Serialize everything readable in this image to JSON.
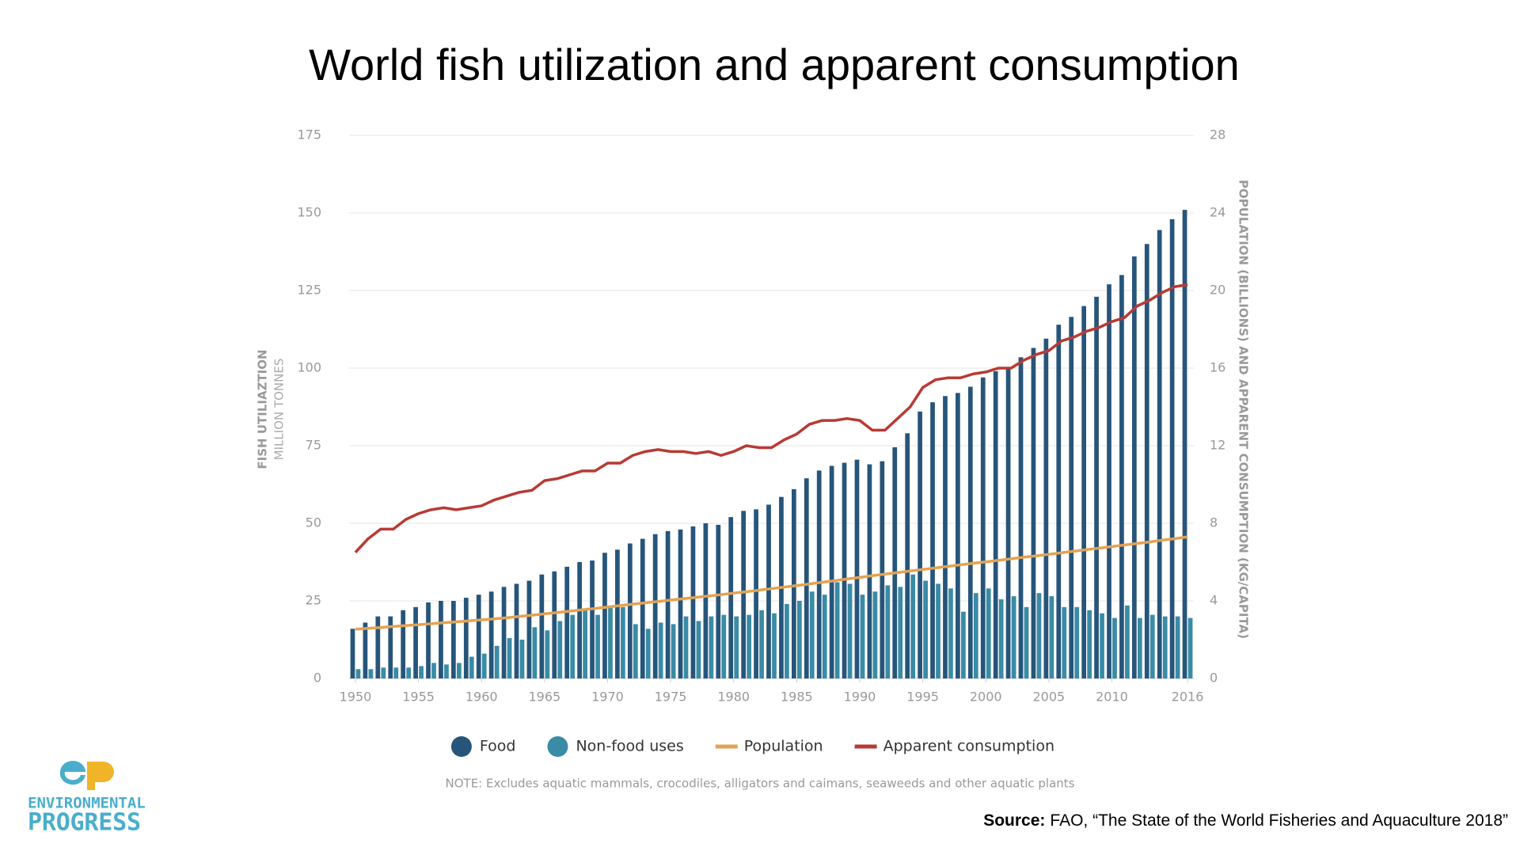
{
  "chart_data": {
    "type": "bar",
    "title": "World fish utilization and apparent consumption",
    "y_label": "FISH UTILIAZTION",
    "y_sublabel": "MILLION TONNES",
    "y2_label": "POPULATION (BILLIONS) AND APPARENT CONSUMPTION (KG/CAPITA)",
    "note": "NOTE: Excludes aquatic mammals, crocodiles, alligators and caimans, seaweeds and other aquatic plants",
    "x": [
      1950,
      1951,
      1952,
      1953,
      1954,
      1955,
      1956,
      1957,
      1958,
      1959,
      1960,
      1961,
      1962,
      1963,
      1964,
      1965,
      1966,
      1967,
      1968,
      1969,
      1970,
      1971,
      1972,
      1973,
      1974,
      1975,
      1976,
      1977,
      1978,
      1979,
      1980,
      1981,
      1982,
      1983,
      1984,
      1985,
      1986,
      1987,
      1988,
      1989,
      1990,
      1991,
      1992,
      1993,
      1994,
      1995,
      1996,
      1997,
      1998,
      1999,
      2000,
      2001,
      2002,
      2003,
      2004,
      2005,
      2006,
      2007,
      2008,
      2009,
      2010,
      2011,
      2012,
      2013,
      2014,
      2015,
      2016
    ],
    "xlim": [
      1949.5,
      2016.5
    ],
    "xticks": [
      1950,
      1955,
      1960,
      1965,
      1970,
      1975,
      1980,
      1985,
      1990,
      1995,
      2000,
      2005,
      2010,
      2016
    ],
    "ylim": [
      0,
      175
    ],
    "yticks": [
      0,
      25,
      50,
      75,
      100,
      125,
      150,
      175
    ],
    "y2lim": [
      0,
      28
    ],
    "y2ticks": [
      0,
      4,
      8,
      12,
      16,
      20,
      24,
      28
    ],
    "grid": true,
    "legend": "bottom",
    "series": [
      {
        "name": "Food",
        "type": "bar",
        "color": "#27557a",
        "values": [
          16,
          18,
          20,
          20,
          22,
          23,
          24.5,
          25,
          25,
          26,
          27,
          28,
          29.5,
          30.5,
          31.5,
          33.5,
          34.5,
          36,
          37.5,
          38,
          40.5,
          41.5,
          43.5,
          45,
          46.5,
          47.5,
          48,
          49,
          50,
          49.5,
          52,
          54,
          54.5,
          56,
          58.5,
          61,
          64.5,
          67,
          68.5,
          69.5,
          70.5,
          69,
          70,
          74.5,
          79,
          86,
          89,
          91,
          92,
          94,
          97,
          99,
          100,
          103.5,
          106.5,
          109.5,
          114,
          116.5,
          120,
          123,
          127,
          130,
          136,
          140,
          144.5,
          148,
          151
        ]
      },
      {
        "name": "Non-food uses",
        "type": "bar",
        "color": "#3a8ba5",
        "values": [
          3,
          3,
          3.5,
          3.5,
          3.5,
          4,
          5,
          4.5,
          5,
          7,
          8,
          10.5,
          13,
          12.5,
          16.5,
          15.5,
          18.5,
          20.5,
          22,
          20.5,
          23.5,
          23,
          17.5,
          16,
          18,
          17.5,
          20,
          18.5,
          20,
          20.5,
          20,
          20.5,
          22,
          21,
          24,
          25,
          28,
          27,
          31,
          30.5,
          27,
          28,
          30,
          29.5,
          33.5,
          31.5,
          30.5,
          29,
          21.5,
          27.5,
          29,
          25.5,
          26.5,
          23,
          27.5,
          26.5,
          23,
          23,
          22,
          21,
          19.5,
          23.5,
          19.5,
          20.5,
          20,
          20,
          19.5
        ]
      },
      {
        "name": "Population",
        "type": "line",
        "axis": "y2",
        "color": "#e3a253",
        "values": [
          2.54,
          2.58,
          2.63,
          2.68,
          2.73,
          2.77,
          2.82,
          2.87,
          2.92,
          2.97,
          3.02,
          3.07,
          3.13,
          3.2,
          3.26,
          3.33,
          3.4,
          3.47,
          3.54,
          3.61,
          3.68,
          3.76,
          3.83,
          3.9,
          3.97,
          4.04,
          4.11,
          4.18,
          4.25,
          4.32,
          4.4,
          4.47,
          4.55,
          4.63,
          4.71,
          4.79,
          4.87,
          4.96,
          5.04,
          5.13,
          5.21,
          5.3,
          5.38,
          5.46,
          5.54,
          5.62,
          5.7,
          5.78,
          5.86,
          5.94,
          6.01,
          6.09,
          6.17,
          6.25,
          6.32,
          6.4,
          6.48,
          6.56,
          6.64,
          6.72,
          6.8,
          6.88,
          6.96,
          7.04,
          7.13,
          7.21,
          7.3
        ]
      },
      {
        "name": "Apparent consumption",
        "type": "line",
        "axis": "y2",
        "color": "#b83a34",
        "values": [
          6.5,
          7.2,
          7.7,
          7.7,
          8.2,
          8.5,
          8.7,
          8.8,
          8.7,
          8.8,
          8.9,
          9.2,
          9.4,
          9.6,
          9.7,
          10.2,
          10.3,
          10.5,
          10.7,
          10.7,
          11.1,
          11.1,
          11.5,
          11.7,
          11.8,
          11.7,
          11.7,
          11.6,
          11.7,
          11.5,
          11.7,
          12,
          11.9,
          11.9,
          12.3,
          12.6,
          13.1,
          13.3,
          13.3,
          13.4,
          13.3,
          12.8,
          12.8,
          13.4,
          14,
          15,
          15.4,
          15.5,
          15.5,
          15.7,
          15.8,
          16,
          16,
          16.4,
          16.7,
          16.9,
          17.4,
          17.6,
          17.9,
          18.1,
          18.4,
          18.6,
          19.2,
          19.5,
          19.9,
          20.2,
          20.3
        ]
      }
    ]
  },
  "source": {
    "label": "Source:",
    "text": "FAO, “The State of the World Fisheries and Aquaculture 2018”"
  },
  "logo": {
    "line1": "ENVIRONMENTAL",
    "line2": "PROGRESS"
  }
}
